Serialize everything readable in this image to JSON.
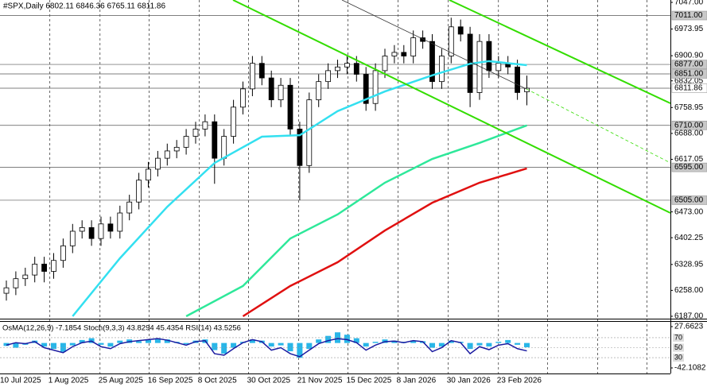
{
  "header": "#SPX,Daily  6802.11 6846.36 6765.11 6811.86",
  "indicator_header": "OsMA(12,26,9) -7.1854  Stoch(9,3,3) 43.8294 45.4354  RSI(14) 43.5256",
  "chart_data": {
    "type": "candlestick",
    "grid": true,
    "ylim": [
      6187,
      7047
    ],
    "yticks": [
      {
        "value": 7047,
        "label": "7047.00"
      },
      {
        "value": 6973.95,
        "label": "6973.95"
      },
      {
        "value": 6900.9,
        "label": "6900.90"
      },
      {
        "value": 6832.05,
        "label": "6832.05"
      },
      {
        "value": 6758.95,
        "label": "6758.95"
      },
      {
        "value": 6688,
        "label": "6688.00"
      },
      {
        "value": 6617.05,
        "label": "6617.05"
      },
      {
        "value": 6473,
        "label": "6473.00"
      },
      {
        "value": 6402.25,
        "label": "6402.25"
      },
      {
        "value": 6328.95,
        "label": "6328.95"
      },
      {
        "value": 6258,
        "label": "6258.00"
      },
      {
        "value": 6187,
        "label": "6187.00"
      }
    ],
    "xticks": [
      {
        "value": -0.7,
        "label": "10 Jul 2025"
      },
      {
        "value": 4.6,
        "label": "1 Aug 2025"
      },
      {
        "value": 9.9,
        "label": "25 Aug 2025"
      },
      {
        "value": 15.1,
        "label": "16 Sep 2025"
      },
      {
        "value": 20.4,
        "label": "8 Oct 2025"
      },
      {
        "value": 25.6,
        "label": "30 Oct 2025"
      },
      {
        "value": 30.9,
        "label": "21 Nov 2025"
      },
      {
        "value": 36.1,
        "label": "15 Dec 2025"
      },
      {
        "value": 41.4,
        "label": "8 Jan 2026"
      },
      {
        "value": 46.7,
        "label": "30 Jan 2026"
      },
      {
        "value": 52,
        "label": "23 Feb 2026"
      }
    ],
    "levels": [
      {
        "value": 7011,
        "label": "7011.00"
      },
      {
        "value": 6877,
        "label": "6877.00"
      },
      {
        "value": 6851,
        "label": "6851.00"
      },
      {
        "value": 6811.86,
        "label": "6811.86"
      },
      {
        "value": 6710,
        "label": "6710.00"
      },
      {
        "value": 6595,
        "label": "6595.00"
      },
      {
        "value": 6505,
        "label": "6505.00"
      }
    ],
    "open": [
      6250,
      6265,
      6290,
      6300,
      6330,
      6310,
      6340,
      6380,
      6420,
      6430,
      6400,
      6440,
      6420,
      6470,
      6500,
      6560,
      6590,
      6620,
      6640,
      6650,
      6680,
      6700,
      6720,
      6620,
      6680,
      6760,
      6810,
      6880,
      6840,
      6780,
      6820,
      6700,
      6600,
      6780,
      6830,
      6860,
      6870,
      6880,
      6850,
      6770,
      6860,
      6900,
      6910,
      6900,
      6950,
      6940,
      6830,
      6900,
      6980,
      6960,
      6800,
      6940,
      6860,
      6880,
      6870,
      6802.11
    ],
    "high": [
      6285,
      6310,
      6320,
      6350,
      6350,
      6360,
      6400,
      6440,
      6450,
      6450,
      6460,
      6460,
      6490,
      6520,
      6580,
      6610,
      6640,
      6660,
      6670,
      6700,
      6720,
      6740,
      6740,
      6700,
      6780,
      6830,
      6900,
      6900,
      6860,
      6840,
      6840,
      6720,
      6800,
      6850,
      6880,
      6890,
      6900,
      6900,
      6870,
      6880,
      6920,
      6930,
      6930,
      6970,
      6970,
      6960,
      6920,
      7005,
      7000,
      6980,
      6960,
      6960,
      6900,
      6900,
      6890,
      6846.36
    ],
    "low": [
      6230,
      6245,
      6270,
      6280,
      6280,
      6290,
      6320,
      6360,
      6400,
      6380,
      6380,
      6400,
      6400,
      6450,
      6480,
      6540,
      6570,
      6600,
      6620,
      6630,
      6660,
      6680,
      6550,
      6600,
      6660,
      6740,
      6790,
      6820,
      6760,
      6760,
      6680,
      6505,
      6580,
      6760,
      6810,
      6840,
      6850,
      6830,
      6750,
      6750,
      6840,
      6880,
      6880,
      6880,
      6920,
      6810,
      6810,
      6880,
      6940,
      6760,
      6780,
      6840,
      6840,
      6850,
      6780,
      6765.11
    ],
    "close": [
      6265,
      6290,
      6300,
      6330,
      6310,
      6340,
      6380,
      6420,
      6430,
      6400,
      6440,
      6420,
      6470,
      6500,
      6560,
      6590,
      6620,
      6640,
      6650,
      6680,
      6700,
      6720,
      6620,
      6680,
      6760,
      6810,
      6880,
      6840,
      6780,
      6820,
      6700,
      6600,
      6780,
      6830,
      6860,
      6870,
      6880,
      6850,
      6770,
      6860,
      6900,
      6910,
      6900,
      6950,
      6940,
      6830,
      6900,
      6980,
      6960,
      6800,
      6940,
      6860,
      6880,
      6870,
      6800,
      6811.86
    ],
    "series": [
      {
        "color": "#33e0f0",
        "x": [
          7,
          12,
          17,
          22,
          27,
          31,
          35,
          40,
          45,
          49,
          51,
          55
        ],
        "values": [
          6187,
          6346,
          6487,
          6607,
          6679,
          6683,
          6749,
          6803,
          6847,
          6879,
          6886,
          6875
        ]
      },
      {
        "color": "#2ee89a",
        "x": [
          19,
          25,
          30,
          35,
          40,
          45,
          50,
          55
        ],
        "values": [
          6187,
          6270,
          6400,
          6466,
          6553,
          6618,
          6662,
          6710
        ]
      },
      {
        "color": "#e01010",
        "x": [
          25,
          30,
          35,
          40,
          45,
          50,
          55
        ],
        "values": [
          6187,
          6270,
          6335,
          6422,
          6498,
          6553,
          6592
        ]
      }
    ],
    "osma": {
      "color": "#29b6e8",
      "ylim": [
        -42.1082,
        27.6623
      ],
      "yticks": [
        {
          "value": 27.6623,
          "label": "27.6623"
        },
        {
          "value": -42.1082,
          "label": "-42.1082"
        }
      ],
      "values": [
        -5,
        -8,
        -3,
        4,
        -6,
        -10,
        -15,
        -4,
        5,
        8,
        -3,
        -6,
        4,
        6,
        3,
        5,
        8,
        6,
        2,
        -2,
        4,
        6,
        -12,
        -18,
        -8,
        2,
        6,
        4,
        -6,
        -4,
        -14,
        -25,
        -10,
        6,
        12,
        18,
        14,
        8,
        -6,
        2,
        6,
        4,
        2,
        4,
        3,
        -8,
        -6,
        4,
        2,
        -10,
        -4,
        -6,
        2,
        5,
        -3,
        -7.1854
      ]
    },
    "rsi": {
      "color": "#1a1aa0",
      "ylim": [
        0,
        100
      ],
      "yticks": [
        70,
        50,
        30
      ],
      "values": [
        55,
        60,
        58,
        62,
        50,
        45,
        40,
        52,
        60,
        63,
        52,
        48,
        58,
        62,
        64,
        66,
        68,
        65,
        60,
        55,
        62,
        64,
        38,
        35,
        48,
        60,
        66,
        62,
        45,
        50,
        38,
        32,
        45,
        58,
        64,
        68,
        66,
        60,
        45,
        55,
        62,
        63,
        60,
        64,
        62,
        42,
        50,
        64,
        60,
        38,
        52,
        46,
        55,
        58,
        48,
        43.5256
      ]
    }
  }
}
